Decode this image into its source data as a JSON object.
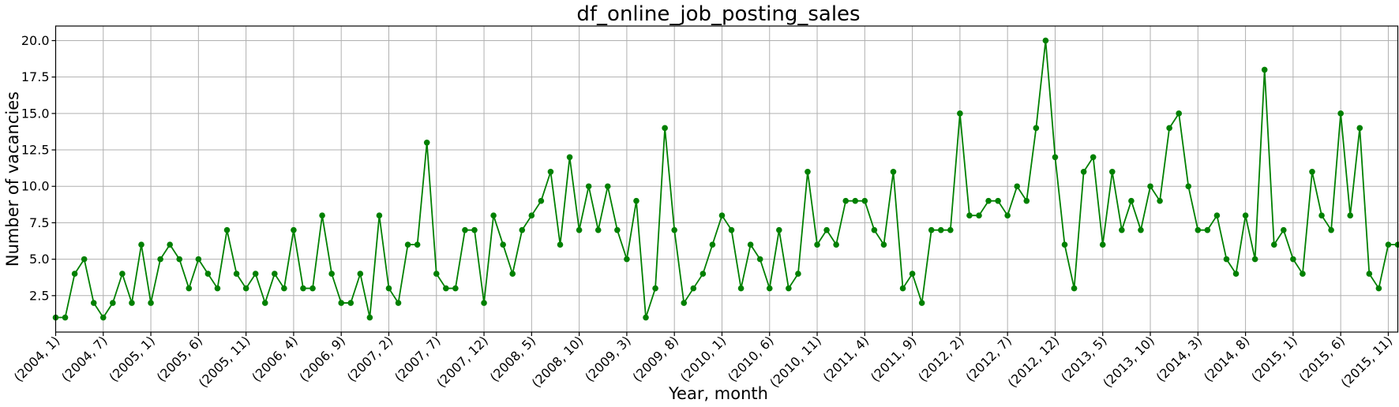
{
  "chart_data": {
    "type": "line",
    "title": "df_online_job_posting_sales",
    "xlabel": "Year, month",
    "ylabel": "Number of vacancies",
    "color": "#008000",
    "grid": true,
    "marker": "circle",
    "ylim": [
      0,
      21
    ],
    "yticks": [
      "2.5",
      "5.0",
      "7.5",
      "10.0",
      "12.5",
      "15.0",
      "17.5",
      "20.0"
    ],
    "start": [
      2004,
      1
    ],
    "xtick_every": 5,
    "values": [
      1,
      1,
      4,
      5,
      2,
      1,
      2,
      4,
      2,
      6,
      2,
      5,
      6,
      5,
      3,
      5,
      4,
      3,
      7,
      4,
      3,
      4,
      2,
      4,
      3,
      7,
      3,
      3,
      8,
      4,
      2,
      2,
      4,
      1,
      8,
      3,
      2,
      6,
      6,
      13,
      4,
      3,
      3,
      7,
      7,
      2,
      8,
      6,
      4,
      7,
      8,
      9,
      11,
      6,
      12,
      7,
      10,
      7,
      10,
      7,
      5,
      9,
      1,
      3,
      14,
      7,
      2,
      3,
      4,
      6,
      8,
      7,
      3,
      6,
      5,
      3,
      7,
      3,
      4,
      11,
      6,
      7,
      6,
      9,
      9,
      9,
      7,
      6,
      11,
      3,
      4,
      2,
      7,
      7,
      7,
      15,
      8,
      8,
      9,
      9,
      8,
      10,
      9,
      14,
      20,
      12,
      6,
      3,
      11,
      12,
      6,
      11,
      7,
      9,
      7,
      10,
      9,
      14,
      15,
      10,
      7,
      7,
      8,
      5,
      4,
      8,
      5,
      18,
      6,
      7,
      5,
      4,
      11,
      8,
      7,
      15,
      8,
      14,
      4,
      3,
      6,
      6
    ],
    "xticks": [
      "(2004, 1)",
      "(2004, 7)",
      "(2005, 1)",
      "(2005, 6)",
      "(2005, 11)",
      "(2006, 4)",
      "(2006, 9)",
      "(2007, 2)",
      "(2007, 7)",
      "(2007, 12)",
      "(2008, 5)",
      "(2008, 10)",
      "(2009, 3)",
      "(2009, 8)",
      "(2010, 1)",
      "(2010, 6)",
      "(2010, 11)",
      "(2011, 4)",
      "(2011, 9)",
      "(2012, 2)",
      "(2012, 7)",
      "(2012, 12)",
      "(2013, 5)",
      "(2013, 10)",
      "(2014, 3)",
      "(2014, 8)",
      "(2015, 1)",
      "(2015, 6)",
      "(2015, 11)"
    ]
  }
}
